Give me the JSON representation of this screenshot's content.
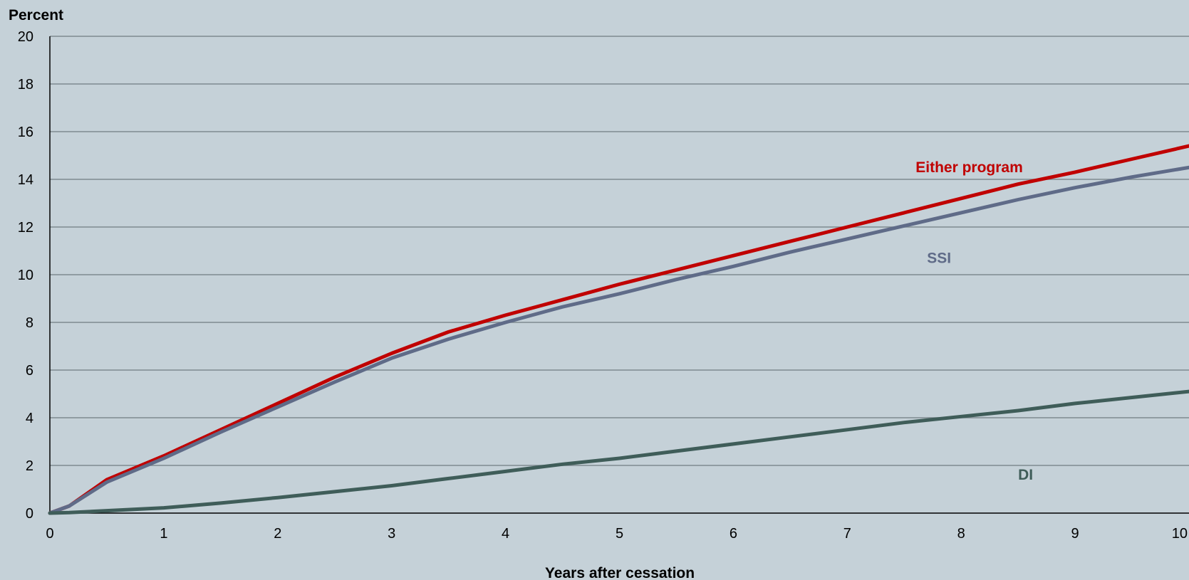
{
  "chart_data": {
    "type": "line",
    "xlabel": "Years after cessation",
    "ylabel": "Percent",
    "xlim": [
      0,
      10
    ],
    "ylim": [
      0,
      20
    ],
    "x_ticks": [
      "0",
      "1",
      "2",
      "3",
      "4",
      "5",
      "6",
      "7",
      "8",
      "9",
      "10"
    ],
    "y_ticks": [
      "0",
      "2",
      "4",
      "6",
      "8",
      "10",
      "12",
      "14",
      "16",
      "18",
      "20"
    ],
    "grid": "horizontal",
    "x": [
      0,
      0.17,
      0.5,
      1,
      1.5,
      2,
      2.5,
      3,
      3.5,
      4,
      4.5,
      5,
      5.5,
      6,
      6.5,
      7,
      7.5,
      8,
      8.5,
      9,
      9.5,
      10
    ],
    "series": [
      {
        "name": "Either program",
        "color": "#c00000",
        "values": [
          0,
          0.3,
          1.4,
          2.4,
          3.5,
          4.6,
          5.7,
          6.7,
          7.6,
          8.3,
          8.95,
          9.6,
          10.2,
          10.8,
          11.4,
          12.0,
          12.6,
          13.2,
          13.8,
          14.3,
          14.85,
          15.4
        ]
      },
      {
        "name": "SSI",
        "color": "#5f6b88",
        "values": [
          0,
          0.3,
          1.3,
          2.3,
          3.4,
          4.45,
          5.5,
          6.5,
          7.3,
          8.0,
          8.65,
          9.2,
          9.8,
          10.35,
          10.95,
          11.5,
          12.05,
          12.6,
          13.15,
          13.65,
          14.1,
          14.5
        ]
      },
      {
        "name": "DI",
        "color": "#3f5d59",
        "values": [
          0,
          0.02,
          0.1,
          0.22,
          0.42,
          0.65,
          0.9,
          1.15,
          1.45,
          1.75,
          2.05,
          2.3,
          2.6,
          2.9,
          3.2,
          3.5,
          3.8,
          4.05,
          4.3,
          4.6,
          4.85,
          5.1
        ]
      }
    ],
    "annotations": [
      {
        "text": "Either program",
        "series": "Either program",
        "x": 7.6,
        "y": 14.3
      },
      {
        "text": "SSI",
        "series": "SSI",
        "x": 7.7,
        "y": 10.5
      },
      {
        "text": "DI",
        "series": "DI",
        "x": 8.5,
        "y": 1.4
      }
    ]
  }
}
